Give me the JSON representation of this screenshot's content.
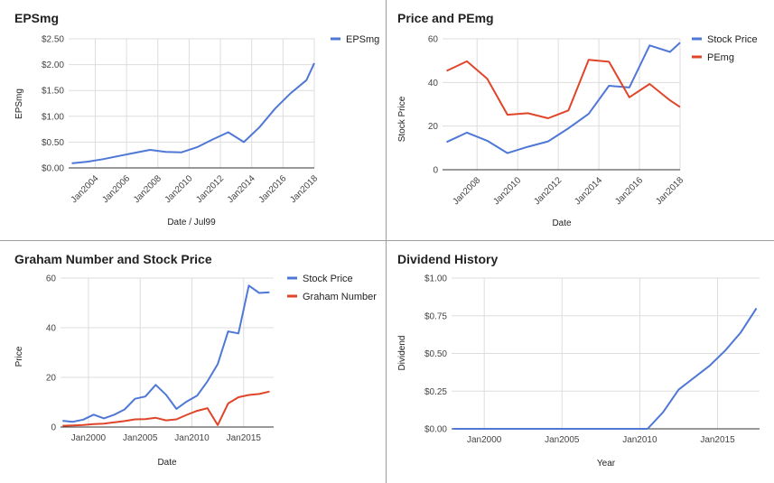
{
  "colors": {
    "blue": "#4f78d6",
    "red": "#e0452a"
  },
  "chart_data": [
    {
      "type": "line",
      "title": "EPSmg",
      "xlabel": "Date / Jul99",
      "ylabel": "EPSmg",
      "ylim": [
        0,
        2.5
      ],
      "yticks": [
        "$0.00",
        "$0.50",
        "$1.00",
        "$1.50",
        "$2.00",
        "$2.50"
      ],
      "xtick_labels": [
        "Jan2004",
        "Jan2006",
        "Jan2008",
        "Jan2010",
        "Jan2012",
        "Jan2014",
        "Jan2016",
        "Jan2018"
      ],
      "grid": true,
      "legend_position": "top-right",
      "series": [
        {
          "name": "EPSmg",
          "color": "blue",
          "x": [
            2002.5,
            2003.5,
            2004.5,
            2005.5,
            2006.5,
            2007.5,
            2008.5,
            2009.5,
            2010.5,
            2011.5,
            2012.5,
            2013.5,
            2014.5,
            2015.5,
            2016.5,
            2017.5,
            2018.0
          ],
          "y": [
            0.09,
            0.12,
            0.17,
            0.23,
            0.29,
            0.35,
            0.31,
            0.3,
            0.4,
            0.55,
            0.69,
            0.5,
            0.79,
            1.15,
            1.45,
            1.7,
            2.03
          ]
        }
      ]
    },
    {
      "type": "line",
      "title": "Price and PEmg",
      "xlabel": "Date",
      "ylabel": "Stock Price",
      "ylim": [
        0,
        60
      ],
      "yticks": [
        "0",
        "20",
        "40",
        "60"
      ],
      "xtick_labels": [
        "Jan2008",
        "Jan2010",
        "Jan2012",
        "Jan2014",
        "Jan2016",
        "Jan2018"
      ],
      "grid": true,
      "legend_position": "top-right",
      "series": [
        {
          "name": "Stock Price",
          "color": "blue",
          "x": [
            2006.5,
            2007.5,
            2008.5,
            2009.5,
            2010.5,
            2011.5,
            2012.5,
            2013.5,
            2014.5,
            2015.5,
            2016.5,
            2017.5,
            2018.0
          ],
          "y": [
            12.7,
            17.0,
            13.3,
            7.6,
            10.5,
            13.0,
            19.0,
            25.6,
            38.5,
            37.7,
            57.0,
            54.0,
            58.2
          ]
        },
        {
          "name": "PEmg",
          "color": "red",
          "x": [
            2006.5,
            2007.5,
            2008.5,
            2009.5,
            2010.5,
            2011.5,
            2012.5,
            2013.5,
            2014.5,
            2015.5,
            2016.5,
            2017.5,
            2018.0
          ],
          "y": [
            45.3,
            49.7,
            41.7,
            25.2,
            25.9,
            23.6,
            27.2,
            50.4,
            49.5,
            33.2,
            39.3,
            31.8,
            28.7
          ]
        }
      ]
    },
    {
      "type": "line",
      "title": "Graham Number and Stock Price",
      "xlabel": "Date",
      "ylabel": "Price",
      "ylim": [
        0,
        60
      ],
      "yticks": [
        "0",
        "20",
        "40",
        "60"
      ],
      "xtick_labels": [
        "Jan2000",
        "Jan2005",
        "Jan2010",
        "Jan2015"
      ],
      "grid": true,
      "legend_position": "top-right",
      "series": [
        {
          "name": "Stock Price",
          "color": "blue",
          "x": [
            1997.5,
            1998.5,
            1999.5,
            2000.5,
            2001.5,
            2002.5,
            2003.5,
            2004.5,
            2005.5,
            2006.5,
            2007.5,
            2008.5,
            2009.5,
            2010.5,
            2011.5,
            2012.5,
            2013.5,
            2014.5,
            2015.5,
            2016.5,
            2017.5
          ],
          "y": [
            2.5,
            2.1,
            3.0,
            5.0,
            3.5,
            5.0,
            7.1,
            11.4,
            12.3,
            17.0,
            13.0,
            7.3,
            10.3,
            12.6,
            18.4,
            25.4,
            38.5,
            37.7,
            57.0,
            54.0,
            54.3
          ]
        },
        {
          "name": "Graham Number",
          "color": "red",
          "x": [
            1997.5,
            1998.5,
            1999.5,
            2000.5,
            2001.5,
            2002.5,
            2003.5,
            2004.5,
            2005.5,
            2006.5,
            2007.5,
            2008.5,
            2009.5,
            2010.5,
            2011.5,
            2012.5,
            2013.5,
            2014.5,
            2015.5,
            2016.5,
            2017.5
          ],
          "y": [
            0.5,
            0.6,
            0.8,
            1.2,
            1.4,
            1.9,
            2.4,
            3.1,
            3.2,
            3.7,
            2.7,
            3.1,
            4.9,
            6.5,
            7.6,
            0.8,
            9.5,
            12.0,
            12.9,
            13.3,
            14.3
          ]
        }
      ]
    },
    {
      "type": "line",
      "title": "Dividend History",
      "xlabel": "Year",
      "ylabel": "Dividend",
      "ylim": [
        0,
        1.0
      ],
      "yticks": [
        "$0.00",
        "$0.25",
        "$0.50",
        "$0.75",
        "$1.00"
      ],
      "xtick_labels": [
        "Jan2000",
        "Jan2005",
        "Jan2010",
        "Jan2015"
      ],
      "grid": true,
      "legend_position": "none",
      "series": [
        {
          "color": "blue",
          "x": [
            1998.0,
            2010.5,
            2011.5,
            2012.5,
            2013.5,
            2014.5,
            2015.5,
            2016.5,
            2017.5
          ],
          "y": [
            0.0,
            0.0,
            0.11,
            0.26,
            0.34,
            0.42,
            0.52,
            0.64,
            0.8
          ]
        }
      ]
    }
  ]
}
